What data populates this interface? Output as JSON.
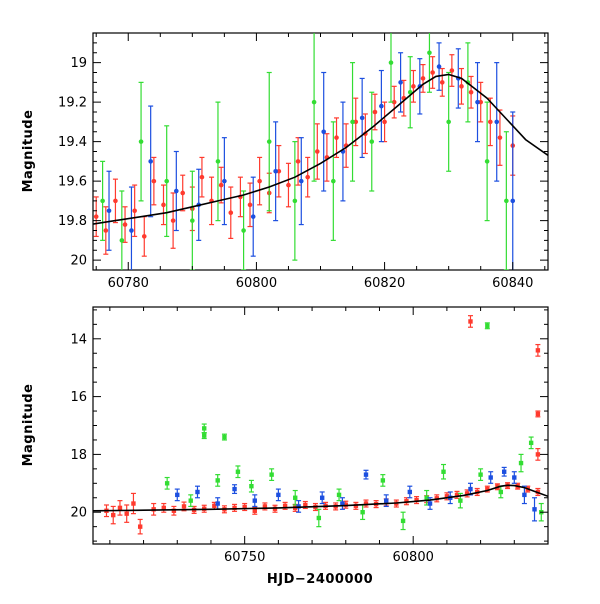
{
  "chart_data": [
    {
      "type": "scatter",
      "panel": "top",
      "xlabel": "",
      "ylabel": "Magnitude",
      "xlim": [
        60774.5,
        60845.5
      ],
      "ylim": [
        20.05,
        18.85
      ],
      "y_inverted": true,
      "x_ticks": [
        60780,
        60800,
        60820,
        60840
      ],
      "x_minor_step": 5,
      "y_ticks": [
        19,
        19.2,
        19.4,
        19.6,
        19.8,
        20
      ],
      "y_minor_step": 0.05,
      "grid": false,
      "legend": "none",
      "colors": {
        "red": "#ff3a2e",
        "green": "#33dd33",
        "blue": "#1c4fe0",
        "model": "#000000"
      },
      "model_curve": [
        [
          60774,
          19.82
        ],
        [
          60778,
          19.8
        ],
        [
          60782,
          19.78
        ],
        [
          60786,
          19.76
        ],
        [
          60790,
          19.73
        ],
        [
          60794,
          19.7
        ],
        [
          60798,
          19.67
        ],
        [
          60802,
          19.63
        ],
        [
          60806,
          19.58
        ],
        [
          60810,
          19.51
        ],
        [
          60814,
          19.43
        ],
        [
          60818,
          19.33
        ],
        [
          60822,
          19.22
        ],
        [
          60826,
          19.11
        ],
        [
          60828,
          19.07
        ],
        [
          60830,
          19.06
        ],
        [
          60832,
          19.08
        ],
        [
          60834,
          19.13
        ],
        [
          60836,
          19.18
        ],
        [
          60838,
          19.25
        ],
        [
          60840,
          19.32
        ],
        [
          60842,
          19.39
        ],
        [
          60845.5,
          19.47
        ]
      ],
      "series": [
        {
          "color": "red",
          "points": [
            [
              60775,
              19.78,
              0.1
            ],
            [
              60776.5,
              19.85,
              0.12
            ],
            [
              60778,
              19.7,
              0.11
            ],
            [
              60779.5,
              19.82,
              0.09
            ],
            [
              60781,
              19.75,
              0.13
            ],
            [
              60782.5,
              19.88,
              0.1
            ],
            [
              60784,
              19.6,
              0.12
            ],
            [
              60785.5,
              19.72,
              0.1
            ],
            [
              60787,
              19.8,
              0.14
            ],
            [
              60788.5,
              19.66,
              0.09
            ],
            [
              60790,
              19.74,
              0.11
            ],
            [
              60791.5,
              19.58,
              0.1
            ],
            [
              60793,
              19.7,
              0.12
            ],
            [
              60794.5,
              19.62,
              0.09
            ],
            [
              60796,
              19.76,
              0.13
            ],
            [
              60797.5,
              19.68,
              0.1
            ],
            [
              60799,
              19.72,
              0.11
            ],
            [
              60800.5,
              19.6,
              0.12
            ],
            [
              60802,
              19.66,
              0.1
            ],
            [
              60803.5,
              19.55,
              0.13
            ],
            [
              60805,
              19.62,
              0.11
            ],
            [
              60806.5,
              19.5,
              0.12
            ],
            [
              60808,
              19.58,
              0.1
            ],
            [
              60809.5,
              19.45,
              0.14
            ],
            [
              60811,
              19.48,
              0.12
            ],
            [
              60812.5,
              19.38,
              0.1
            ],
            [
              60814,
              19.42,
              0.11
            ],
            [
              60815.5,
              19.3,
              0.12
            ],
            [
              60817,
              19.36,
              0.1
            ],
            [
              60818.5,
              19.25,
              0.09
            ],
            [
              60820,
              19.3,
              0.1
            ],
            [
              60821.5,
              19.2,
              0.08
            ],
            [
              60823,
              19.18,
              0.09
            ],
            [
              60824.5,
              19.12,
              0.08
            ],
            [
              60826,
              19.08,
              0.07
            ],
            [
              60827.5,
              19.05,
              0.08
            ],
            [
              60829,
              19.1,
              0.07
            ],
            [
              60830.5,
              19.04,
              0.08
            ],
            [
              60832,
              19.12,
              0.09
            ],
            [
              60833.5,
              19.15,
              0.08
            ],
            [
              60835,
              19.2,
              0.1
            ],
            [
              60836.5,
              19.3,
              0.12
            ],
            [
              60838,
              19.38,
              0.14
            ],
            [
              60840,
              19.42,
              0.15
            ]
          ]
        },
        {
          "color": "green",
          "points": [
            [
              60776,
              19.7,
              0.2
            ],
            [
              60779,
              19.9,
              0.25
            ],
            [
              60782,
              19.4,
              0.3
            ],
            [
              60786,
              19.6,
              0.28
            ],
            [
              60790,
              19.8,
              0.25
            ],
            [
              60794,
              19.5,
              0.3
            ],
            [
              60798,
              19.85,
              0.2
            ],
            [
              60802,
              19.4,
              0.35
            ],
            [
              60806,
              19.7,
              0.3
            ],
            [
              60809,
              19.2,
              0.4
            ],
            [
              60812,
              19.6,
              0.3
            ],
            [
              60815,
              19.3,
              0.3
            ],
            [
              60818,
              19.4,
              0.25
            ],
            [
              60821,
              19.0,
              0.2
            ],
            [
              60824,
              19.15,
              0.18
            ],
            [
              60827,
              18.95,
              0.2
            ],
            [
              60830,
              19.3,
              0.25
            ],
            [
              60833,
              19.1,
              0.2
            ],
            [
              60836,
              19.5,
              0.3
            ],
            [
              60839,
              19.7,
              0.35
            ]
          ]
        },
        {
          "color": "blue",
          "points": [
            [
              60777,
              19.75,
              0.2
            ],
            [
              60780.5,
              19.85,
              0.22
            ],
            [
              60783.5,
              19.5,
              0.28
            ],
            [
              60787.5,
              19.65,
              0.2
            ],
            [
              60791,
              19.72,
              0.18
            ],
            [
              60795,
              19.6,
              0.22
            ],
            [
              60799.5,
              19.78,
              0.2
            ],
            [
              60803,
              19.55,
              0.25
            ],
            [
              60807,
              19.6,
              0.22
            ],
            [
              60810.5,
              19.35,
              0.3
            ],
            [
              60813.5,
              19.45,
              0.25
            ],
            [
              60816.5,
              19.28,
              0.2
            ],
            [
              60819.5,
              19.22,
              0.18
            ],
            [
              60822.5,
              19.1,
              0.15
            ],
            [
              60825.5,
              19.12,
              0.14
            ],
            [
              60828.5,
              19.02,
              0.12
            ],
            [
              60831.5,
              19.08,
              0.15
            ],
            [
              60834.5,
              19.2,
              0.2
            ],
            [
              60837.5,
              19.3,
              0.3
            ],
            [
              60840,
              19.7,
              0.45
            ]
          ]
        }
      ]
    },
    {
      "type": "scatter",
      "panel": "bottom",
      "xlabel": "HJD−2400000",
      "ylabel": "Magnitude",
      "xlim": [
        60705,
        60840
      ],
      "ylim": [
        21.1,
        12.9
      ],
      "y_inverted": true,
      "x_ticks": [
        60750,
        60800
      ],
      "x_minor_step": 10,
      "y_ticks": [
        14,
        16,
        18,
        20
      ],
      "y_minor_step": 0.5,
      "grid": false,
      "legend": "none",
      "colors": {
        "red": "#ff3a2e",
        "green": "#33dd33",
        "blue": "#1c4fe0",
        "model": "#000000"
      },
      "model_curve": [
        [
          60705,
          19.95
        ],
        [
          60720,
          19.93
        ],
        [
          60740,
          19.9
        ],
        [
          60760,
          19.85
        ],
        [
          60780,
          19.77
        ],
        [
          60795,
          19.68
        ],
        [
          60805,
          19.58
        ],
        [
          60815,
          19.42
        ],
        [
          60822,
          19.25
        ],
        [
          60826,
          19.1
        ],
        [
          60828,
          19.07
        ],
        [
          60830,
          19.08
        ],
        [
          60833,
          19.15
        ],
        [
          60836,
          19.28
        ],
        [
          60840,
          19.45
        ]
      ],
      "series": [
        {
          "color": "red",
          "points": [
            [
              60709,
              19.95,
              0.2
            ],
            [
              60711,
              20.1,
              0.3
            ],
            [
              60713,
              19.85,
              0.25
            ],
            [
              60715,
              20.05,
              0.3
            ],
            [
              60717,
              19.7,
              0.35
            ],
            [
              60719,
              20.5,
              0.25
            ],
            [
              60723,
              19.9,
              0.2
            ],
            [
              60726,
              19.85,
              0.15
            ],
            [
              60729,
              19.95,
              0.15
            ],
            [
              60732,
              19.8,
              0.15
            ],
            [
              60735,
              19.92,
              0.12
            ],
            [
              60738,
              19.88,
              0.12
            ],
            [
              60741,
              19.78,
              0.12
            ],
            [
              60744,
              19.9,
              0.12
            ],
            [
              60747,
              19.85,
              0.12
            ],
            [
              60750,
              19.82,
              0.12
            ],
            [
              60753,
              19.95,
              0.12
            ],
            [
              60756,
              19.8,
              0.12
            ],
            [
              60759,
              19.88,
              0.12
            ],
            [
              60762,
              19.78,
              0.12
            ],
            [
              60765,
              19.85,
              0.12
            ],
            [
              60768,
              19.75,
              0.12
            ],
            [
              60771,
              19.82,
              0.12
            ],
            [
              60774,
              19.78,
              0.12
            ],
            [
              60777,
              19.8,
              0.12
            ],
            [
              60780,
              19.74,
              0.12
            ],
            [
              60783,
              19.78,
              0.12
            ],
            [
              60786,
              19.7,
              0.12
            ],
            [
              60789,
              19.72,
              0.12
            ],
            [
              60792,
              19.66,
              0.12
            ],
            [
              60795,
              19.7,
              0.12
            ],
            [
              60798,
              19.62,
              0.12
            ],
            [
              60801,
              19.58,
              0.12
            ],
            [
              60804,
              19.55,
              0.12
            ],
            [
              60807,
              19.52,
              0.12
            ],
            [
              60810,
              19.45,
              0.12
            ],
            [
              60813,
              19.4,
              0.12
            ],
            [
              60816,
              19.35,
              0.12
            ],
            [
              60819,
              19.3,
              0.12
            ],
            [
              60822,
              19.2,
              0.1
            ],
            [
              60825,
              19.12,
              0.1
            ],
            [
              60828,
              19.08,
              0.1
            ],
            [
              60831,
              19.1,
              0.1
            ],
            [
              60834,
              19.2,
              0.1
            ],
            [
              60837,
              19.3,
              0.12
            ],
            [
              60817,
              13.4,
              0.2
            ],
            [
              60837,
              14.4,
              0.2
            ],
            [
              60837,
              16.6,
              0.1
            ],
            [
              60837,
              18.0,
              0.2
            ]
          ]
        },
        {
          "color": "green",
          "points": [
            [
              60738,
              17.1,
              0.15
            ],
            [
              60738,
              17.35,
              0.1
            ],
            [
              60744,
              17.4,
              0.1
            ],
            [
              60822,
              13.55,
              0.1
            ],
            [
              60727,
              19.0,
              0.2
            ],
            [
              60734,
              19.6,
              0.2
            ],
            [
              60742,
              18.9,
              0.2
            ],
            [
              60748,
              18.6,
              0.2
            ],
            [
              60752,
              19.1,
              0.2
            ],
            [
              60758,
              18.7,
              0.2
            ],
            [
              60765,
              19.5,
              0.25
            ],
            [
              60772,
              20.2,
              0.3
            ],
            [
              60778,
              19.4,
              0.2
            ],
            [
              60785,
              20.0,
              0.25
            ],
            [
              60791,
              18.9,
              0.2
            ],
            [
              60797,
              20.3,
              0.3
            ],
            [
              60804,
              19.5,
              0.25
            ],
            [
              60809,
              18.6,
              0.25
            ],
            [
              60814,
              19.6,
              0.25
            ],
            [
              60820,
              18.7,
              0.2
            ],
            [
              60826,
              19.3,
              0.2
            ],
            [
              60832,
              18.3,
              0.3
            ],
            [
              60835,
              17.6,
              0.2
            ],
            [
              60838,
              20.0,
              0.3
            ]
          ]
        },
        {
          "color": "blue",
          "points": [
            [
              60730,
              19.4,
              0.2
            ],
            [
              60736,
              19.3,
              0.2
            ],
            [
              60742,
              19.7,
              0.2
            ],
            [
              60747,
              19.2,
              0.15
            ],
            [
              60753,
              19.6,
              0.2
            ],
            [
              60760,
              19.4,
              0.2
            ],
            [
              60766,
              19.8,
              0.2
            ],
            [
              60773,
              19.5,
              0.2
            ],
            [
              60779,
              19.7,
              0.2
            ],
            [
              60786,
              18.7,
              0.15
            ],
            [
              60792,
              19.6,
              0.2
            ],
            [
              60799,
              19.3,
              0.2
            ],
            [
              60805,
              19.7,
              0.2
            ],
            [
              60811,
              19.5,
              0.2
            ],
            [
              60817,
              19.2,
              0.2
            ],
            [
              60823,
              18.8,
              0.2
            ],
            [
              60827,
              18.6,
              0.15
            ],
            [
              60830,
              18.8,
              0.2
            ],
            [
              60833,
              19.4,
              0.3
            ],
            [
              60836,
              19.9,
              0.4
            ]
          ]
        }
      ]
    }
  ]
}
